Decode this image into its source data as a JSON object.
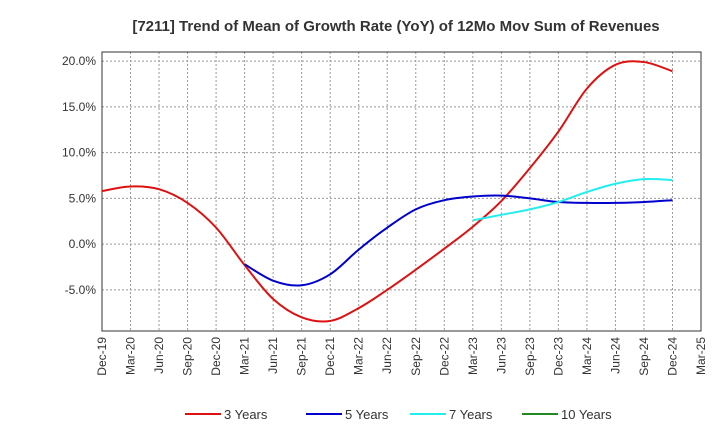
{
  "chart_data": {
    "type": "line",
    "title": "[7211]  Trend of Mean of Growth Rate (YoY) of 12Mo Mov Sum of Revenues",
    "xlabel": "",
    "ylabel": "",
    "ylim": [
      -9.5,
      21
    ],
    "y_ticks": [
      20,
      15,
      10,
      5,
      0,
      -5
    ],
    "y_tick_labels": [
      "20.0%",
      "15.0%",
      "10.0%",
      "5.0%",
      "0.0%",
      "-5.0%"
    ],
    "x_tick_labels": [
      "Dec-19",
      "Mar-20",
      "Jun-20",
      "Sep-20",
      "Dec-20",
      "Mar-21",
      "Jun-21",
      "Sep-21",
      "Dec-21",
      "Mar-22",
      "Jun-22",
      "Sep-22",
      "Dec-22",
      "Mar-23",
      "Jun-23",
      "Sep-23",
      "Dec-23",
      "Mar-24",
      "Jun-24",
      "Sep-24",
      "Dec-24",
      "Mar-25"
    ],
    "grid": true,
    "legend_position": "bottom",
    "series": [
      {
        "name": "3 Years",
        "color": "#dd1111",
        "points": [
          [
            0,
            5.8
          ],
          [
            1,
            6.3
          ],
          [
            2,
            6.0
          ],
          [
            3,
            4.5
          ],
          [
            4,
            1.8
          ],
          [
            5,
            -2.3
          ],
          [
            6,
            -6.0
          ],
          [
            7,
            -8.0
          ],
          [
            8,
            -8.4
          ],
          [
            9,
            -7.0
          ],
          [
            10,
            -5.0
          ],
          [
            11,
            -2.8
          ],
          [
            12,
            -0.5
          ],
          [
            13,
            1.9
          ],
          [
            14,
            4.7
          ],
          [
            15,
            8.3
          ],
          [
            16,
            12.3
          ],
          [
            17,
            17.0
          ],
          [
            18,
            19.6
          ],
          [
            19,
            19.9
          ],
          [
            20,
            18.9
          ]
        ]
      },
      {
        "name": "5 Years",
        "color": "#0000cc",
        "points": [
          [
            5,
            -2.2
          ],
          [
            6,
            -4.0
          ],
          [
            7,
            -4.5
          ],
          [
            8,
            -3.3
          ],
          [
            9,
            -0.6
          ],
          [
            10,
            1.8
          ],
          [
            11,
            3.8
          ],
          [
            12,
            4.8
          ],
          [
            13,
            5.2
          ],
          [
            14,
            5.3
          ],
          [
            15,
            5.0
          ],
          [
            16,
            4.6
          ],
          [
            17,
            4.5
          ],
          [
            18,
            4.5
          ],
          [
            19,
            4.6
          ],
          [
            20,
            4.8
          ]
        ]
      },
      {
        "name": "7 Years",
        "color": "#22eeee",
        "points": [
          [
            13,
            2.6
          ],
          [
            14,
            3.2
          ],
          [
            15,
            3.8
          ],
          [
            16,
            4.6
          ],
          [
            17,
            5.7
          ],
          [
            18,
            6.6
          ],
          [
            19,
            7.1
          ],
          [
            20,
            7.0
          ]
        ]
      },
      {
        "name": "10 Years",
        "color": "#228822",
        "points": []
      }
    ]
  }
}
